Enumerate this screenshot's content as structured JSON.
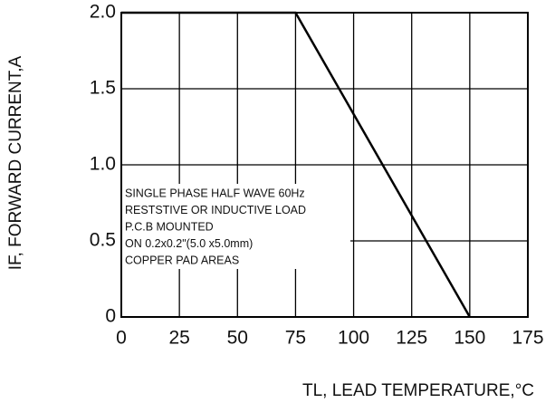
{
  "chart_data": {
    "type": "line",
    "x_label": "TL, LEAD TEMPERATURE,°C",
    "y_label": "IF, FORWARD CURRENT,A",
    "annotation": [
      "SINGLE PHASE HALF WAVE 60Hz",
      "RESTSTIVE OR INDUCTIVE LOAD",
      "P.C.B MOUNTED",
      "ON 0.2x0.2\"(5.0 x5.0mm)",
      "COPPER PAD AREAS"
    ],
    "x": [
      0,
      75,
      150
    ],
    "series": [
      {
        "color": "#000000",
        "values": [
          2,
          2,
          0
        ]
      }
    ],
    "xlim": [
      0,
      175
    ],
    "xticks": [
      0,
      25,
      50,
      75,
      100,
      125,
      150,
      175
    ],
    "ylim": [
      0,
      2
    ],
    "yticks": [
      0,
      0.5,
      {
        "value": 1,
        "label": "1.0"
      },
      1.5,
      {
        "value": 2,
        "label": "2.0"
      }
    ],
    "grid": true
  }
}
